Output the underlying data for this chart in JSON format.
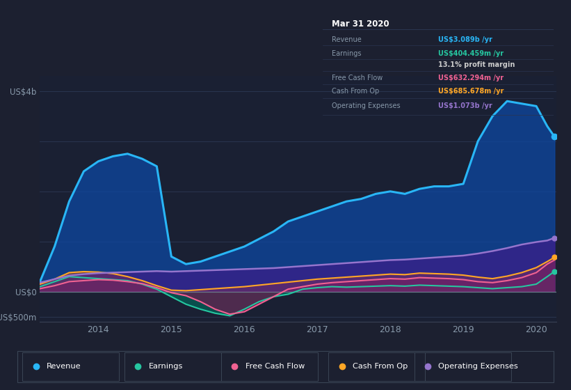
{
  "bg_color": "#1c2030",
  "plot_bg_color": "#1e2535",
  "chart_bg_color": "#1a2033",
  "legend_bg": "#252d3d",
  "tooltip_bg": "#0d1117",
  "grid_color": "#2a3550",
  "legend": [
    {
      "label": "Revenue",
      "color": "#29b6f6"
    },
    {
      "label": "Earnings",
      "color": "#26c6a0"
    },
    {
      "label": "Free Cash Flow",
      "color": "#f06292"
    },
    {
      "label": "Cash From Op",
      "color": "#ffa726"
    },
    {
      "label": "Operating Expenses",
      "color": "#9575cd"
    }
  ],
  "series": {
    "x": [
      2013.2,
      2013.4,
      2013.6,
      2013.8,
      2014.0,
      2014.2,
      2014.4,
      2014.6,
      2014.8,
      2015.0,
      2015.2,
      2015.4,
      2015.6,
      2015.8,
      2016.0,
      2016.2,
      2016.4,
      2016.6,
      2016.8,
      2017.0,
      2017.2,
      2017.4,
      2017.6,
      2017.8,
      2018.0,
      2018.2,
      2018.4,
      2018.6,
      2018.8,
      2019.0,
      2019.2,
      2019.4,
      2019.6,
      2019.8,
      2020.0,
      2020.15,
      2020.25
    ],
    "revenue": [
      200,
      900,
      1800,
      2400,
      2600,
      2700,
      2750,
      2650,
      2500,
      700,
      550,
      600,
      700,
      800,
      900,
      1050,
      1200,
      1400,
      1500,
      1600,
      1700,
      1800,
      1850,
      1950,
      2000,
      1950,
      2050,
      2100,
      2100,
      2150,
      3000,
      3500,
      3800,
      3750,
      3700,
      3300,
      3089
    ],
    "earnings": [
      100,
      200,
      300,
      280,
      260,
      240,
      220,
      150,
      50,
      -100,
      -250,
      -350,
      -430,
      -480,
      -350,
      -200,
      -100,
      -50,
      50,
      80,
      100,
      90,
      100,
      110,
      120,
      110,
      130,
      120,
      110,
      100,
      80,
      60,
      80,
      100,
      150,
      300,
      404
    ],
    "free_cash_flow": [
      60,
      120,
      200,
      220,
      240,
      230,
      200,
      160,
      80,
      -20,
      -80,
      -200,
      -350,
      -450,
      -400,
      -250,
      -100,
      50,
      100,
      150,
      180,
      200,
      220,
      240,
      260,
      250,
      280,
      270,
      260,
      240,
      200,
      180,
      220,
      280,
      380,
      550,
      632
    ],
    "cash_from_op": [
      150,
      250,
      380,
      400,
      390,
      360,
      300,
      220,
      120,
      30,
      20,
      40,
      60,
      80,
      100,
      130,
      160,
      190,
      220,
      250,
      270,
      290,
      310,
      330,
      350,
      340,
      370,
      360,
      350,
      330,
      290,
      260,
      310,
      380,
      480,
      600,
      686
    ],
    "op_expenses": [
      180,
      250,
      320,
      350,
      370,
      380,
      390,
      400,
      410,
      400,
      410,
      420,
      430,
      440,
      450,
      460,
      470,
      490,
      510,
      530,
      550,
      570,
      590,
      610,
      630,
      640,
      660,
      680,
      700,
      720,
      760,
      810,
      870,
      940,
      990,
      1020,
      1073
    ]
  }
}
